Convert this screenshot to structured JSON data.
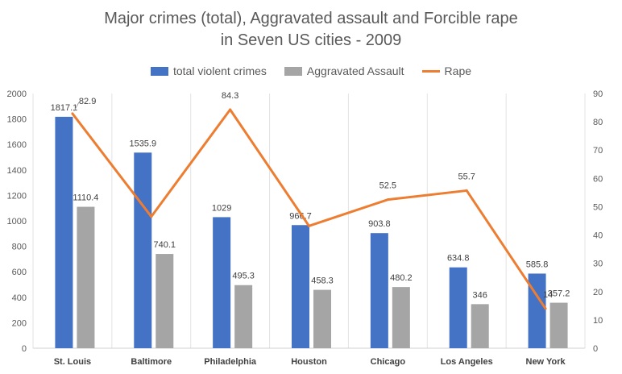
{
  "chart_data": {
    "type": "bar",
    "title": "Major crimes (total), Aggravated assault and Forcible rape",
    "subtitle": "in Seven US cities - 2009",
    "categories": [
      "St. Louis",
      "Baltimore",
      "Philadelphia",
      "Houston",
      "Chicago",
      "Los Angeles",
      "New York"
    ],
    "series": [
      {
        "name": "total violent crimes",
        "type": "bar",
        "axis": "left",
        "color": "#4472C4",
        "values": [
          1817.1,
          1535.9,
          1029,
          966.7,
          903.8,
          634.8,
          585.8
        ],
        "labels": [
          "1817.1",
          "1535.9",
          "1029",
          "966.7",
          "903.8",
          "634.8",
          "585.8"
        ]
      },
      {
        "name": "Aggravated Assault",
        "type": "bar",
        "axis": "left",
        "color": "#A5A5A5",
        "values": [
          1110.4,
          740.1,
          495.3,
          458.3,
          480.2,
          346,
          357.2
        ],
        "labels": [
          "1110.4",
          "740.1",
          "495.3",
          "458.3",
          "480.2",
          "346",
          "357.2"
        ]
      },
      {
        "name": "Rape",
        "type": "line",
        "axis": "right",
        "color": "#ED7D31",
        "values": [
          82.9,
          46.5,
          84.3,
          43.2,
          52.5,
          55.7,
          14
        ],
        "labels": [
          "82.9",
          "",
          "84.3",
          "",
          "52.5",
          "55.7",
          "14"
        ]
      }
    ],
    "y_left": {
      "min": 0,
      "max": 2000,
      "ticks": [
        "0",
        "200",
        "400",
        "600",
        "800",
        "1000",
        "1200",
        "1400",
        "1600",
        "1800",
        "2000"
      ]
    },
    "y_right": {
      "min": 0,
      "max": 90,
      "ticks": [
        "0",
        "10",
        "20",
        "30",
        "40",
        "50",
        "60",
        "70",
        "80",
        "90"
      ]
    },
    "grid": false,
    "category_separators": true,
    "legend_position": "top"
  }
}
